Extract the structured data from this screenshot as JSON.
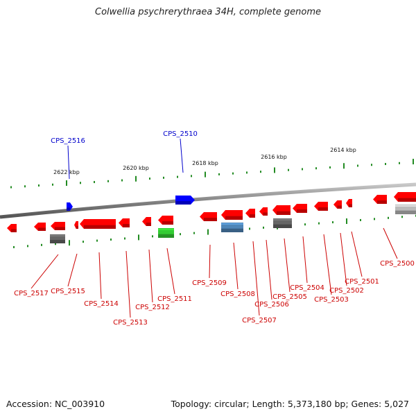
{
  "title": "Colwellia psychrerythraea 34H, complete genome",
  "accession": "Accession: NC_003910",
  "topology": "Topology: circular; Length: 5,373,180 bp; Genes: 5,027",
  "colors": {
    "backbone": "#8a8a8a",
    "forward_gene": "#0000ff",
    "reverse_gene": "#ff0000",
    "rna_gene": "#33cc33",
    "pseudo_gray": "#666666",
    "blue_gray": "#4f86b8",
    "light_gray": "#bbbbbb",
    "tick": "#228b22",
    "label_forward": "#0000cc",
    "label_reverse": "#cc0000"
  },
  "ticks": [
    {
      "label": "2622 kbp"
    },
    {
      "label": "2620 kbp"
    },
    {
      "label": "2618 kbp"
    },
    {
      "label": "2616 kbp"
    },
    {
      "label": "2614 kbp"
    }
  ],
  "forward_labels": [
    "CPS_2516",
    "CPS_2510"
  ],
  "reverse_labels": [
    "CPS_2517",
    "CPS_2515",
    "CPS_2514",
    "CPS_2513",
    "CPS_2512",
    "CPS_2511",
    "CPS_2509",
    "CPS_2508",
    "CPS_2507",
    "CPS_2506",
    "CPS_2505",
    "CPS_2504",
    "CPS_2503",
    "CPS_2502",
    "CPS_2501",
    "CPS_2500"
  ]
}
